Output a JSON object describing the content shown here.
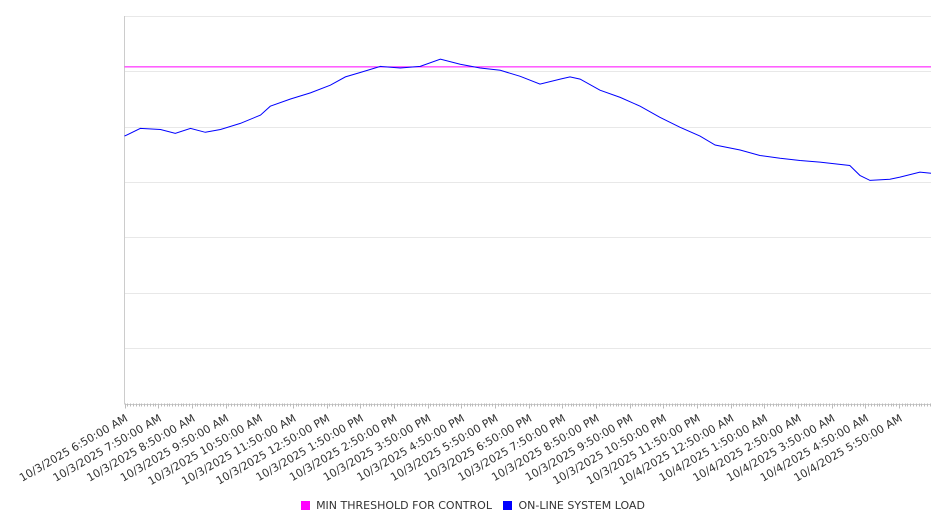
{
  "chart_data": {
    "type": "line",
    "title": "",
    "xlabel": "",
    "ylabel": "",
    "ylim": [
      0,
      70
    ],
    "y_gridlines": [
      0,
      10,
      20,
      30,
      40,
      50,
      60,
      70
    ],
    "x_unit": "hours since 10/3/2025 6:50:00 AM",
    "xlim": [
      0,
      23.95
    ],
    "x_tick_labels": [
      "10/3/2025 6:50:00 AM",
      "10/3/2025 7:50:00 AM",
      "10/3/2025 8:50:00 AM",
      "10/3/2025 9:50:00 AM",
      "10/3/2025 10:50:00 AM",
      "10/3/2025 11:50:00 AM",
      "10/3/2025 12:50:00 PM",
      "10/3/2025 1:50:00 PM",
      "10/3/2025 2:50:00 PM",
      "10/3/2025 3:50:00 PM",
      "10/3/2025 4:50:00 PM",
      "10/3/2025 5:50:00 PM",
      "10/3/2025 6:50:00 PM",
      "10/3/2025 7:50:00 PM",
      "10/3/2025 8:50:00 PM",
      "10/3/2025 9:50:00 PM",
      "10/3/2025 10:50:00 PM",
      "10/3/2025 11:50:00 PM",
      "10/4/2025 12:50:00 AM",
      "10/4/2025 1:50:00 AM",
      "10/4/2025 2:50:00 AM",
      "10/4/2025 3:50:00 AM",
      "10/4/2025 4:50:00 AM",
      "10/4/2025 5:50:00 AM"
    ],
    "legend_position": "bottom",
    "series": [
      {
        "name": "MIN THRESHOLD FOR CONTROL",
        "color": "#ff00ff",
        "x": [
          0,
          23.95
        ],
        "y": [
          60.8,
          60.8
        ]
      },
      {
        "name": "ON-LINE SYSTEM LOAD",
        "color": "#0000ff",
        "x": [
          0,
          0.47,
          1.07,
          1.51,
          1.96,
          2.4,
          2.85,
          3.44,
          4.04,
          4.33,
          4.93,
          5.52,
          6.11,
          6.56,
          7.0,
          7.6,
          8.19,
          8.78,
          9.38,
          9.97,
          10.56,
          11.16,
          11.75,
          12.34,
          12.94,
          13.23,
          13.53,
          14.12,
          14.72,
          15.31,
          15.9,
          16.5,
          17.09,
          17.54,
          18.28,
          18.87,
          19.47,
          20.06,
          20.65,
          21.54,
          21.84,
          22.14,
          22.73,
          23.03,
          23.62,
          23.95
        ],
        "y": [
          48.3,
          49.7,
          49.5,
          48.8,
          49.7,
          49.0,
          49.5,
          50.6,
          52.1,
          53.7,
          55.0,
          56.1,
          57.5,
          59.0,
          59.8,
          60.9,
          60.6,
          60.9,
          62.2,
          61.3,
          60.6,
          60.2,
          59.1,
          57.7,
          58.6,
          59.0,
          58.6,
          56.6,
          55.3,
          53.7,
          51.7,
          49.9,
          48.3,
          46.7,
          45.8,
          44.8,
          44.3,
          43.9,
          43.6,
          43.0,
          41.2,
          40.3,
          40.5,
          40.9,
          41.8,
          41.6
        ]
      }
    ]
  }
}
